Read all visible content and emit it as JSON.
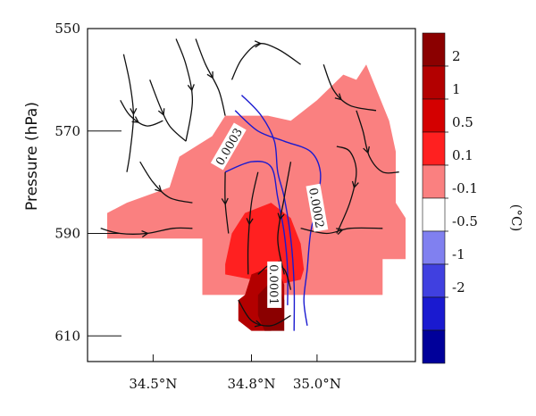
{
  "chart_data": {
    "type": "heatmap",
    "title": "",
    "xlabel": "",
    "ylabel": "Pressure (hPa)",
    "x_ticks": [
      {
        "value": 34.5,
        "label": "34.5°N"
      },
      {
        "value": 34.8,
        "label": "34.8°N"
      },
      {
        "value": 35.0,
        "label": "35.0°N"
      }
    ],
    "xlim": [
      34.3,
      35.3
    ],
    "y_ticks": [
      {
        "value": 550,
        "label": "550"
      },
      {
        "value": 570,
        "label": "570"
      },
      {
        "value": 590,
        "label": "590"
      },
      {
        "value": 610,
        "label": "610"
      }
    ],
    "ylim": [
      550,
      615
    ],
    "colorbar": {
      "unit": "(°C)",
      "levels": [
        "2",
        "1",
        "0.5",
        "0.1",
        "-0.1",
        "-0.5",
        "-1",
        "-2"
      ],
      "colors": [
        "#8b0000",
        "#b30000",
        "#d40000",
        "#ff2020",
        "#fa8080",
        "#ffffff",
        "#8080f0",
        "#4040e0",
        "#1a1ad0",
        "#00009a"
      ]
    },
    "shaded_regions": [
      {
        "category": "0.1 to 0.5",
        "color": "#fa8080",
        "polygon": [
          [
            34.36,
            591
          ],
          [
            34.36,
            586
          ],
          [
            34.42,
            584
          ],
          [
            34.55,
            581
          ],
          [
            34.58,
            575
          ],
          [
            34.68,
            571
          ],
          [
            34.72,
            567
          ],
          [
            34.85,
            567
          ],
          [
            34.92,
            568
          ],
          [
            35.0,
            564
          ],
          [
            35.08,
            559
          ],
          [
            35.12,
            560
          ],
          [
            35.15,
            557
          ],
          [
            35.22,
            568
          ],
          [
            35.24,
            574
          ],
          [
            35.24,
            584
          ],
          [
            35.27,
            587
          ],
          [
            35.27,
            595
          ],
          [
            35.2,
            595
          ],
          [
            35.2,
            602
          ],
          [
            35.02,
            602
          ],
          [
            34.95,
            602
          ],
          [
            34.65,
            602
          ],
          [
            34.65,
            591
          ],
          [
            34.36,
            591
          ]
        ]
      },
      {
        "category": "0.5 to 1",
        "color": "#ff2020",
        "polygon": [
          [
            34.72,
            596
          ],
          [
            34.74,
            590
          ],
          [
            34.78,
            586
          ],
          [
            34.86,
            584
          ],
          [
            34.92,
            587
          ],
          [
            34.95,
            592
          ],
          [
            34.96,
            597
          ],
          [
            34.95,
            599
          ],
          [
            34.88,
            600
          ],
          [
            34.72,
            598
          ]
        ]
      },
      {
        "category": "1 to 2",
        "color": "#b30000",
        "polygon": [
          [
            34.78,
            602
          ],
          [
            34.8,
            598
          ],
          [
            34.84,
            597
          ],
          [
            34.88,
            597
          ],
          [
            34.9,
            600
          ],
          [
            34.9,
            603
          ],
          [
            34.9,
            607
          ],
          [
            34.86,
            609
          ],
          [
            34.8,
            609
          ],
          [
            34.76,
            607
          ],
          [
            34.76,
            603
          ]
        ]
      },
      {
        "category": "> 2",
        "color": "#8b0000",
        "polygon": [
          [
            34.82,
            602
          ],
          [
            34.85,
            600
          ],
          [
            34.88,
            600
          ],
          [
            34.9,
            603
          ],
          [
            34.9,
            609
          ],
          [
            34.84,
            609
          ],
          [
            34.82,
            606
          ]
        ]
      }
    ],
    "contours": [
      {
        "label": "0.0003",
        "color": "#1a1ad0",
        "points": [
          [
            34.77,
            563
          ],
          [
            34.83,
            567
          ],
          [
            34.87,
            572
          ],
          [
            34.88,
            578
          ],
          [
            34.9,
            583
          ],
          [
            34.92,
            591
          ],
          [
            34.93,
            600
          ],
          [
            34.93,
            609
          ]
        ]
      },
      {
        "label": "0.0002",
        "color": "#1a1ad0",
        "points": [
          [
            34.75,
            566
          ],
          [
            34.82,
            570
          ],
          [
            34.9,
            572
          ],
          [
            34.98,
            574
          ],
          [
            35.01,
            578
          ],
          [
            35.0,
            584
          ],
          [
            34.98,
            590
          ],
          [
            34.97,
            597
          ],
          [
            34.96,
            603
          ],
          [
            34.97,
            608
          ]
        ]
      },
      {
        "label": "0.0001",
        "color": "#1a1ad0",
        "points": [
          [
            34.72,
            578
          ],
          [
            34.8,
            576
          ],
          [
            34.86,
            577
          ],
          [
            34.88,
            583
          ],
          [
            34.9,
            590
          ],
          [
            34.91,
            597
          ],
          [
            34.91,
            604
          ]
        ]
      }
    ],
    "contour_labels": [
      {
        "text": "0.0003",
        "x": 34.73,
        "y": 573,
        "rotate": -60
      },
      {
        "text": "0.0002",
        "x": 35.0,
        "y": 585,
        "rotate": 80
      },
      {
        "text": "0.0001",
        "x": 34.87,
        "y": 600,
        "rotate": 90
      }
    ],
    "streamlines": [
      [
        [
          34.41,
          555
        ],
        [
          34.43,
          561
        ],
        [
          34.44,
          567
        ],
        [
          34.43,
          574
        ],
        [
          34.42,
          578
        ]
      ],
      [
        [
          34.4,
          564
        ],
        [
          34.43,
          567
        ],
        [
          34.48,
          569
        ],
        [
          34.53,
          568
        ]
      ],
      [
        [
          34.49,
          560
        ],
        [
          34.52,
          565
        ],
        [
          34.55,
          569
        ],
        [
          34.6,
          572
        ]
      ],
      [
        [
          34.57,
          552
        ],
        [
          34.6,
          557
        ],
        [
          34.62,
          564
        ],
        [
          34.6,
          572
        ]
      ],
      [
        [
          34.63,
          552
        ],
        [
          34.66,
          557
        ],
        [
          34.7,
          562
        ],
        [
          34.72,
          567
        ]
      ],
      [
        [
          34.74,
          560
        ],
        [
          34.77,
          556
        ],
        [
          34.82,
          553
        ],
        [
          34.88,
          554
        ],
        [
          34.95,
          557
        ]
      ],
      [
        [
          35.02,
          557
        ],
        [
          35.05,
          562
        ],
        [
          35.1,
          565
        ],
        [
          35.18,
          566
        ]
      ],
      [
        [
          35.12,
          566
        ],
        [
          35.14,
          570
        ],
        [
          35.16,
          575
        ],
        [
          35.2,
          578
        ],
        [
          35.25,
          578
        ]
      ],
      [
        [
          35.06,
          573
        ],
        [
          35.1,
          574
        ],
        [
          35.12,
          578
        ],
        [
          35.1,
          584
        ],
        [
          35.06,
          590
        ]
      ],
      [
        [
          34.46,
          576
        ],
        [
          34.5,
          580
        ],
        [
          34.55,
          583
        ],
        [
          34.62,
          584
        ]
      ],
      [
        [
          34.34,
          589
        ],
        [
          34.4,
          590
        ],
        [
          34.48,
          590
        ],
        [
          34.56,
          589
        ],
        [
          34.62,
          589
        ]
      ],
      [
        [
          34.72,
          578
        ],
        [
          34.72,
          584
        ],
        [
          34.73,
          590
        ]
      ],
      [
        [
          34.82,
          578
        ],
        [
          34.8,
          584
        ],
        [
          34.79,
          592
        ],
        [
          34.79,
          598
        ]
      ],
      [
        [
          34.92,
          576
        ],
        [
          34.9,
          583
        ],
        [
          34.88,
          591
        ],
        [
          34.9,
          598
        ]
      ],
      [
        [
          34.95,
          589
        ],
        [
          35.03,
          590
        ],
        [
          35.1,
          589
        ],
        [
          35.2,
          589
        ]
      ],
      [
        [
          34.76,
          603
        ],
        [
          34.8,
          607
        ],
        [
          34.86,
          608
        ],
        [
          34.92,
          606
        ]
      ],
      [
        [
          34.82,
          598
        ],
        [
          34.86,
          596
        ],
        [
          34.9,
          597
        ],
        [
          34.92,
          601
        ]
      ]
    ]
  }
}
